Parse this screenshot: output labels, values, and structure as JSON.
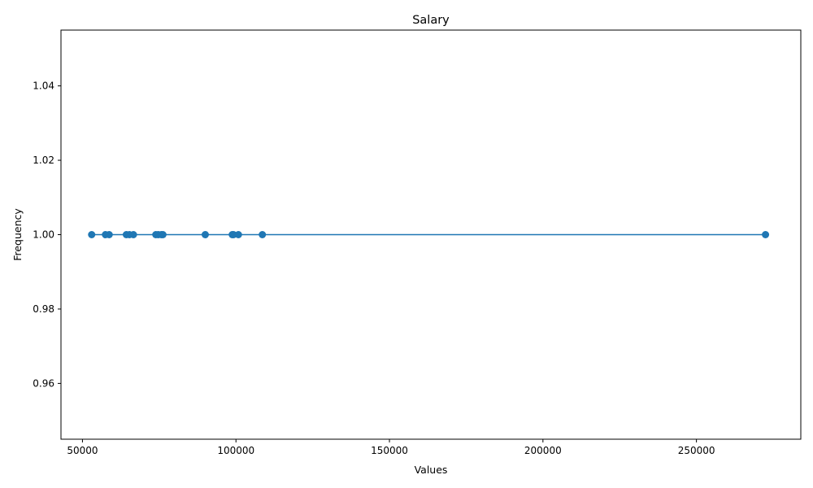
{
  "chart_data": {
    "type": "line",
    "title": "Salary",
    "xlabel": "Values",
    "ylabel": "Frequency",
    "xlim": [
      43000,
      284000
    ],
    "ylim": [
      0.945,
      1.055
    ],
    "x_ticks": [
      50000,
      100000,
      150000,
      200000,
      250000
    ],
    "x_tick_labels": [
      "50000",
      "100000",
      "150000",
      "200000",
      "250000"
    ],
    "y_ticks": [
      0.96,
      0.98,
      1.0,
      1.02,
      1.04
    ],
    "y_tick_labels": [
      "0.96",
      "0.98",
      "1.00",
      "1.02",
      "1.04"
    ],
    "grid": false,
    "series": [
      {
        "color": "#1f77b4",
        "marker": "circle",
        "x": [
          53000,
          57500,
          58700,
          64300,
          65300,
          66600,
          73900,
          74700,
          75700,
          76200,
          90000,
          98800,
          99200,
          100800,
          108600,
          272500
        ],
        "y": [
          1,
          1,
          1,
          1,
          1,
          1,
          1,
          1,
          1,
          1,
          1,
          1,
          1,
          1,
          1,
          1
        ]
      }
    ]
  }
}
